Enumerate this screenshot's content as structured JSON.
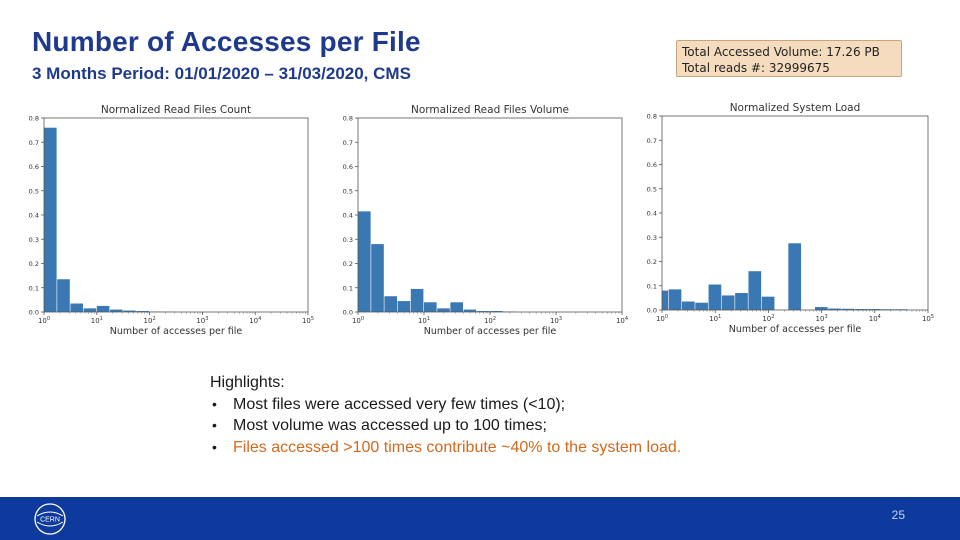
{
  "header": {
    "title": "Number of Accesses per File",
    "subtitle": "3 Months Period: 01/01/2020 – 31/03/2020, CMS"
  },
  "infobox": {
    "line1": "Total Accessed Volume: 17.26 PB",
    "line2": "Total reads #: 32999675"
  },
  "chart_data": [
    {
      "type": "bar",
      "title": "Normalized Read Files Count",
      "xlabel": "Number of accesses per file",
      "ylabel": "",
      "xscale": "log",
      "xlim": [
        1,
        100000
      ],
      "ylim": [
        0,
        0.8
      ],
      "yticks": [
        "0.0",
        "0.1",
        "0.2",
        "0.3",
        "0.4",
        "0.5",
        "0.6",
        "0.7",
        "0.8"
      ],
      "xticks": [
        "10^0",
        "10^1",
        "10^2",
        "10^3",
        "10^4",
        "10^5"
      ],
      "bar_color": "#3a78b4",
      "bins": [
        {
          "x0": 1,
          "x1": 1.778,
          "value": 0.76
        },
        {
          "x0": 1.778,
          "x1": 3.162,
          "value": 0.135
        },
        {
          "x0": 3.162,
          "x1": 5.623,
          "value": 0.035
        },
        {
          "x0": 5.623,
          "x1": 10,
          "value": 0.015
        },
        {
          "x0": 10,
          "x1": 17.78,
          "value": 0.025
        },
        {
          "x0": 17.78,
          "x1": 31.62,
          "value": 0.01
        },
        {
          "x0": 31.62,
          "x1": 56.23,
          "value": 0.006
        },
        {
          "x0": 56.23,
          "x1": 100,
          "value": 0.004
        },
        {
          "x0": 100,
          "x1": 177.8,
          "value": 0.002
        },
        {
          "x0": 177.8,
          "x1": 316.2,
          "value": 0.001
        }
      ]
    },
    {
      "type": "bar",
      "title": "Normalized Read Files Volume",
      "xlabel": "Number of accesses per file",
      "ylabel": "",
      "xscale": "log",
      "xlim": [
        1,
        10000
      ],
      "ylim": [
        0,
        0.8
      ],
      "yticks": [
        "0.0",
        "0.1",
        "0.2",
        "0.3",
        "0.4",
        "0.5",
        "0.6",
        "0.7",
        "0.8"
      ],
      "xticks": [
        "10^0",
        "10^1",
        "10^2",
        "10^3",
        "10^4"
      ],
      "bar_color": "#3a78b4",
      "bins": [
        {
          "x0": 1,
          "x1": 1.585,
          "value": 0.415
        },
        {
          "x0": 1.585,
          "x1": 2.512,
          "value": 0.28
        },
        {
          "x0": 2.512,
          "x1": 3.981,
          "value": 0.065
        },
        {
          "x0": 3.981,
          "x1": 6.31,
          "value": 0.045
        },
        {
          "x0": 6.31,
          "x1": 10,
          "value": 0.095
        },
        {
          "x0": 10,
          "x1": 15.85,
          "value": 0.04
        },
        {
          "x0": 15.85,
          "x1": 25.12,
          "value": 0.015
        },
        {
          "x0": 25.12,
          "x1": 39.81,
          "value": 0.04
        },
        {
          "x0": 39.81,
          "x1": 63.1,
          "value": 0.01
        },
        {
          "x0": 63.1,
          "x1": 100,
          "value": 0.004
        },
        {
          "x0": 100,
          "x1": 158.5,
          "value": 0.004
        },
        {
          "x0": 158.5,
          "x1": 251.2,
          "value": 0.002
        }
      ]
    },
    {
      "type": "bar",
      "title": "Normalized System Load",
      "xlabel": "Number of accesses per file",
      "ylabel": "",
      "xscale": "log",
      "xlim": [
        1,
        100000
      ],
      "ylim": [
        0,
        0.8
      ],
      "yticks": [
        "0.0",
        "0.1",
        "0.2",
        "0.3",
        "0.4",
        "0.5",
        "0.6",
        "0.7",
        "0.8"
      ],
      "xticks": [
        "10^0",
        "10^1",
        "10^2",
        "10^3",
        "10^4",
        "10^5"
      ],
      "bar_color": "#3a78b4",
      "bins": [
        {
          "x0": 0.75,
          "x1": 1.334,
          "value": 0.08
        },
        {
          "x0": 1.334,
          "x1": 2.371,
          "value": 0.085
        },
        {
          "x0": 2.371,
          "x1": 4.217,
          "value": 0.035
        },
        {
          "x0": 4.217,
          "x1": 7.499,
          "value": 0.03
        },
        {
          "x0": 7.499,
          "x1": 13.34,
          "value": 0.105
        },
        {
          "x0": 13.34,
          "x1": 23.71,
          "value": 0.06
        },
        {
          "x0": 23.71,
          "x1": 42.17,
          "value": 0.07
        },
        {
          "x0": 42.17,
          "x1": 74.99,
          "value": 0.16
        },
        {
          "x0": 74.99,
          "x1": 133.4,
          "value": 0.055
        },
        {
          "x0": 133.4,
          "x1": 237.1,
          "value": 0.0
        },
        {
          "x0": 237.1,
          "x1": 421.7,
          "value": 0.275
        },
        {
          "x0": 421.7,
          "x1": 749.9,
          "value": 0.0
        },
        {
          "x0": 749.9,
          "x1": 1334,
          "value": 0.012
        },
        {
          "x0": 1334,
          "x1": 2371,
          "value": 0.006
        },
        {
          "x0": 2371,
          "x1": 4217,
          "value": 0.005
        },
        {
          "x0": 4217,
          "x1": 7499,
          "value": 0.004
        },
        {
          "x0": 7499,
          "x1": 13340,
          "value": 0.004
        },
        {
          "x0": 13340,
          "x1": 23710,
          "value": 0.003
        },
        {
          "x0": 23710,
          "x1": 42170,
          "value": 0.003
        }
      ]
    }
  ],
  "highlights": {
    "heading": "Highlights:",
    "items": [
      "Most files were accessed very few times (<10);",
      "Most volume was accessed up to 100 times;",
      "Files accessed >100 times contribute ~40% to the system load."
    ],
    "accent_color": "#d2691e"
  },
  "footer": {
    "page_number": "25",
    "logo_text": "CERN",
    "logo_icon": "cern-logo-icon",
    "background": "#0d3a9c"
  }
}
